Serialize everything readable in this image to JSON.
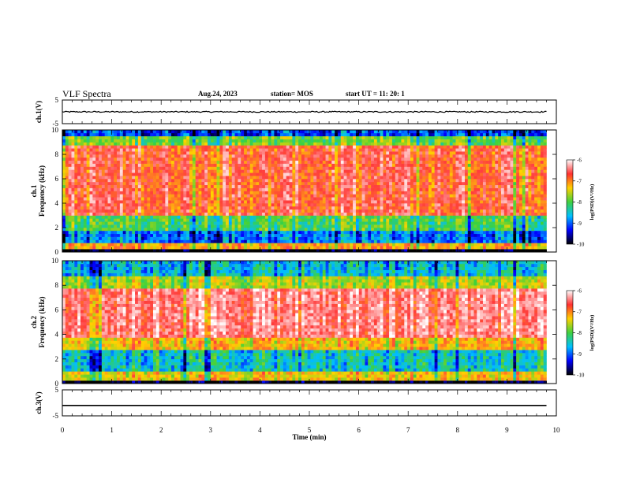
{
  "header": {
    "title": "VLF Spectra",
    "date": "Aug.24, 2023",
    "station": "station= MOS",
    "start": "start  UT =  11: 20: 1"
  },
  "colorbar": {
    "label": "log(PSD)(V²/Hz)",
    "ticks": [
      -6,
      -7,
      -8,
      -9,
      -10
    ],
    "colors": [
      "#ffffff",
      "#ff3030",
      "#ffd000",
      "#40d040",
      "#00c0ff",
      "#0000ff",
      "#000000"
    ]
  },
  "chart_data": [
    {
      "type": "line",
      "panel": "ch1",
      "ylabel": "ch.1(V)",
      "ylim": [
        -5,
        5
      ],
      "yticks": [
        5,
        -5
      ],
      "xlim": [
        0,
        10
      ],
      "series": [
        {
          "x": [
            0,
            9.8
          ],
          "values": [
            0,
            0
          ]
        }
      ]
    },
    {
      "type": "heatmap",
      "panel": "ch1-spectrogram",
      "ylabel_channel": "ch.1",
      "ylabel": "Frequency (kHz)",
      "ylim": [
        0,
        10
      ],
      "yticks": [
        0,
        2,
        4,
        6,
        8,
        10
      ],
      "xlim": [
        0,
        10
      ],
      "x_end": 9.8,
      "bands": [
        {
          "from": 0,
          "to": 0.3,
          "level": -10
        },
        {
          "from": 0.3,
          "to": 0.8,
          "level": -7.3
        },
        {
          "from": 0.8,
          "to": 1.8,
          "level": -9.0
        },
        {
          "from": 1.8,
          "to": 3.0,
          "level": -8.2
        },
        {
          "from": 3.0,
          "to": 8.8,
          "level": -6.8
        },
        {
          "from": 8.8,
          "to": 9.5,
          "level": -8.0
        },
        {
          "from": 9.5,
          "to": 10,
          "level": -9.2
        }
      ]
    },
    {
      "type": "heatmap",
      "panel": "ch2-spectrogram",
      "ylabel_channel": "ch.2",
      "ylabel": "Frequency (kHz)",
      "ylim": [
        0,
        10
      ],
      "yticks": [
        0,
        2,
        4,
        6,
        8,
        10
      ],
      "xlim": [
        0,
        10
      ],
      "x_end": 9.8,
      "bands": [
        {
          "from": 0,
          "to": 0.3,
          "level": -10
        },
        {
          "from": 0.3,
          "to": 1.0,
          "level": -7.5
        },
        {
          "from": 1.0,
          "to": 2.8,
          "level": -8.6
        },
        {
          "from": 2.8,
          "to": 3.8,
          "level": -7.4
        },
        {
          "from": 3.8,
          "to": 7.8,
          "level": -6.5
        },
        {
          "from": 7.8,
          "to": 8.8,
          "level": -7.8
        },
        {
          "from": 8.8,
          "to": 10,
          "level": -8.7
        }
      ]
    },
    {
      "type": "line",
      "panel": "ch3",
      "ylabel": "ch.3(V)",
      "ylim": [
        -5,
        5
      ],
      "yticks": [
        5,
        -5
      ],
      "xlim": [
        0,
        10
      ],
      "series": [
        {
          "x": [
            0,
            9.8
          ],
          "values": [
            -1,
            -1
          ]
        }
      ]
    }
  ],
  "xaxis": {
    "label": "Time (min)",
    "ticks": [
      0,
      1,
      2,
      3,
      4,
      5,
      6,
      7,
      8,
      9,
      10
    ]
  }
}
